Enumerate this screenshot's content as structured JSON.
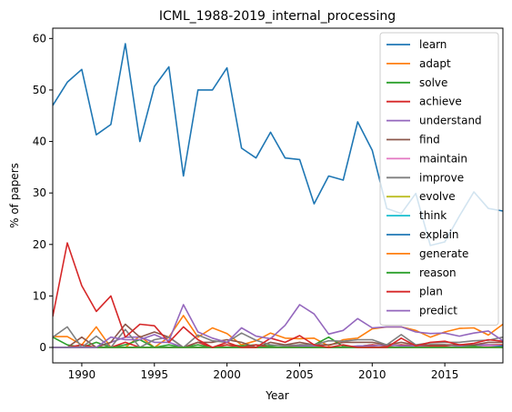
{
  "chart_data": {
    "type": "line",
    "title": "ICML_1988-2019_internal_processing",
    "xlabel": "Year",
    "ylabel": "% of papers",
    "xlim": [
      1988,
      2019
    ],
    "ylim": [
      -3,
      62
    ],
    "xticks": [
      1990,
      1995,
      2000,
      2005,
      2010,
      2015
    ],
    "yticks": [
      0,
      10,
      20,
      30,
      40,
      50,
      60
    ],
    "legend_position": "top-right",
    "grid": false,
    "x": [
      1988,
      1989,
      1990,
      1991,
      1992,
      1993,
      1994,
      1995,
      1996,
      1997,
      1998,
      1999,
      2000,
      2001,
      2002,
      2003,
      2004,
      2005,
      2006,
      2007,
      2008,
      2009,
      2010,
      2011,
      2012,
      2013,
      2014,
      2015,
      2016,
      2017,
      2018,
      2019
    ],
    "series": [
      {
        "name": "learn",
        "color": "#1f77b4",
        "values": [
          47,
          51.5,
          54,
          41.3,
          43.3,
          59,
          40,
          50.7,
          54.5,
          33.3,
          50,
          50,
          54.3,
          38.7,
          36.8,
          41.8,
          36.8,
          36.5,
          27.9,
          33.3,
          32.5,
          43.8,
          38.3,
          27,
          26,
          29.9,
          19.8,
          20.5,
          25.5,
          30.2,
          27,
          26.5
        ]
      },
      {
        "name": "adapt",
        "color": "#ff7f0e",
        "values": [
          2.1,
          2.1,
          0.5,
          4,
          0,
          0,
          2.2,
          0,
          2,
          6.2,
          2,
          3.8,
          2.7,
          0.5,
          1.3,
          2.8,
          1.8,
          1.7,
          1.8,
          0.3,
          1.5,
          1.8,
          3.6,
          4,
          4,
          3.3,
          2,
          3,
          3.7,
          3.8,
          2.4,
          4.5
        ]
      },
      {
        "name": "solve",
        "color": "#2ca02c",
        "values": [
          2,
          0.5,
          0,
          1,
          0,
          0.5,
          1.5,
          0,
          0.5,
          0,
          0.5,
          0,
          0.5,
          0.3,
          0.5,
          0.3,
          0.5,
          0.3,
          0.5,
          2,
          0.2,
          0.2,
          0.5,
          0.3,
          0.5,
          0.3,
          0.5,
          0.5,
          0.3,
          0.3,
          0.5,
          0.5
        ]
      },
      {
        "name": "achieve",
        "color": "#d62728",
        "values": [
          0,
          0,
          0.5,
          0,
          0,
          1,
          0,
          0,
          0,
          0,
          1,
          0,
          0.5,
          0,
          0.5,
          0,
          0,
          0.5,
          0.5,
          0,
          0,
          0.2,
          0.5,
          0.3,
          0.5,
          0.3,
          0.3,
          0.3,
          0.5,
          0.5,
          0.5,
          0.5
        ]
      },
      {
        "name": "understand",
        "color": "#9467bd",
        "values": [
          0,
          0,
          0,
          0,
          1,
          2,
          2,
          1,
          1,
          0,
          0,
          0,
          0,
          0,
          0,
          0,
          0,
          0.2,
          0.3,
          0,
          0,
          0.3,
          0.3,
          0.5,
          0.3,
          0.3,
          0.5,
          0.5,
          0.3,
          0.5,
          0.5,
          0.3
        ]
      },
      {
        "name": "find",
        "color": "#8c564b",
        "values": [
          0,
          0,
          2,
          0,
          1,
          4.5,
          2,
          3,
          2,
          0,
          1,
          1,
          1.5,
          1,
          0,
          1,
          0.5,
          1,
          0.5,
          0.5,
          1,
          1,
          1,
          0.5,
          1,
          0.5,
          0.5,
          0.5,
          0.5,
          0.5,
          1,
          1
        ]
      },
      {
        "name": "maintain",
        "color": "#e377c2",
        "values": [
          0,
          0,
          0,
          0,
          0,
          0,
          0,
          0,
          0,
          0,
          0,
          0,
          0,
          0,
          0,
          0,
          0,
          0,
          0,
          0,
          0,
          0,
          0,
          0,
          0,
          0,
          0,
          0,
          0,
          0,
          0.3,
          0.3
        ]
      },
      {
        "name": "improve",
        "color": "#7f7f7f",
        "values": [
          2,
          4,
          0,
          2.2,
          0,
          3.5,
          0,
          1.5,
          2,
          0,
          2.4,
          1.3,
          1,
          2.8,
          1.4,
          0.5,
          0.3,
          0.5,
          0.5,
          1.3,
          1.2,
          1.5,
          1.5,
          0.5,
          2.5,
          0.5,
          0.9,
          1,
          1,
          1.3,
          1.4,
          2
        ]
      },
      {
        "name": "evolve",
        "color": "#bcbd22",
        "values": [
          0,
          0,
          0,
          0,
          0,
          0,
          0,
          0,
          0,
          0,
          0,
          0,
          0,
          0,
          0,
          0,
          0,
          0,
          0,
          0,
          0,
          0,
          0,
          0,
          0,
          0,
          0,
          0,
          0,
          0,
          0,
          0
        ]
      },
      {
        "name": "think",
        "color": "#17becf",
        "values": [
          0,
          0,
          0,
          0,
          0,
          0,
          0,
          0,
          0,
          0,
          0,
          0,
          0,
          0,
          0,
          0,
          0,
          0,
          0,
          0,
          0,
          0,
          0,
          0,
          0,
          0,
          0,
          0,
          0,
          0,
          0,
          0
        ]
      },
      {
        "name": "explain",
        "color": "#1f77b4",
        "values": [
          0,
          0,
          0,
          0,
          0,
          0,
          0,
          0,
          0,
          0,
          0,
          0,
          0,
          0,
          0,
          0,
          0,
          0,
          0,
          0,
          0,
          0,
          0,
          0,
          0,
          0,
          0,
          0,
          0,
          0,
          0,
          0.3
        ]
      },
      {
        "name": "generate",
        "color": "#ff7f0e",
        "values": [
          0,
          0,
          0,
          0,
          0,
          0,
          0,
          0,
          0,
          0,
          0,
          0,
          0,
          0,
          0,
          0,
          0,
          0,
          0,
          0,
          0,
          0,
          0,
          0,
          0,
          0,
          0,
          0,
          0,
          0,
          0,
          0
        ]
      },
      {
        "name": "reason",
        "color": "#2ca02c",
        "values": [
          0,
          0,
          0,
          0,
          0,
          0,
          0,
          0,
          0,
          0,
          0,
          0,
          0,
          0,
          0,
          0,
          0,
          0,
          0,
          0,
          0,
          0,
          0,
          0,
          0,
          0,
          0,
          0,
          0,
          0,
          0,
          0
        ]
      },
      {
        "name": "plan",
        "color": "#d62728",
        "values": [
          6,
          20.3,
          12,
          7,
          10,
          2,
          4.5,
          4.2,
          1,
          4,
          1.5,
          0,
          1,
          0,
          0,
          1.8,
          1,
          2.3,
          0.5,
          0,
          0.5,
          0,
          0,
          0,
          1.8,
          0.3,
          1,
          1.2,
          0.5,
          0.8,
          1.5,
          1.2
        ]
      },
      {
        "name": "predict",
        "color": "#9467bd",
        "values": [
          0,
          0,
          0,
          0,
          2,
          1.5,
          1.5,
          2.5,
          1.3,
          8.3,
          3,
          1.8,
          1,
          3.8,
          2.2,
          1.7,
          4.3,
          8.3,
          6.5,
          2.6,
          3.3,
          5.6,
          3.8,
          4,
          4,
          3,
          2.7,
          2.8,
          2.2,
          2.8,
          3.2,
          1.3
        ]
      }
    ]
  }
}
